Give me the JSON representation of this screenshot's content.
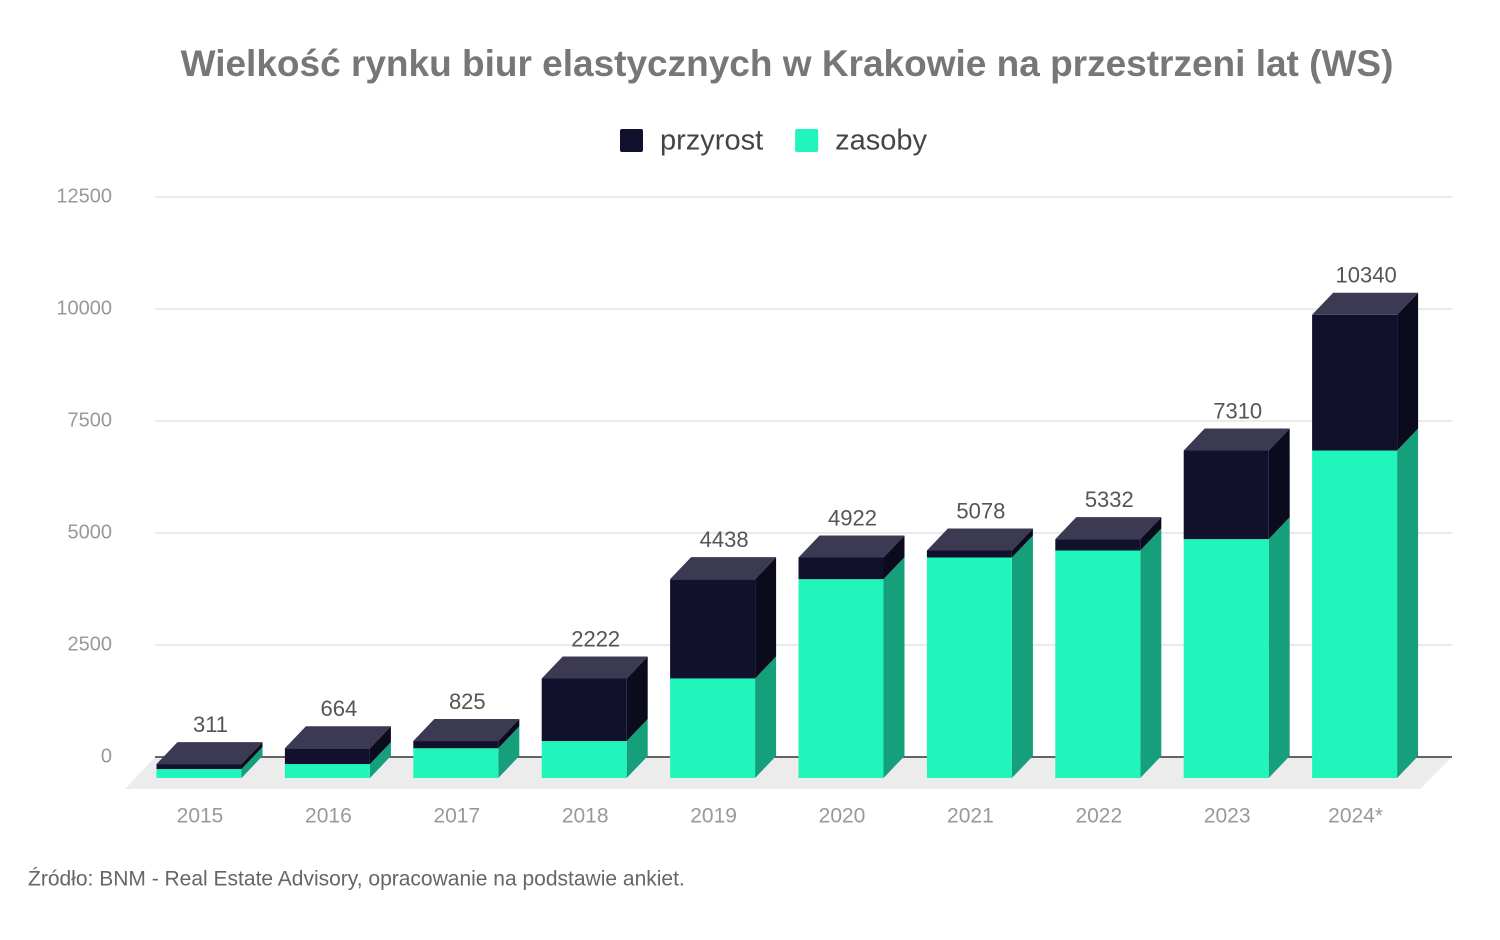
{
  "chart_data": {
    "type": "bar3d_stacked",
    "title": "Wielkość rynku biur elastycznych w Krakowie na przestrzeni lat (WS)",
    "categories": [
      "2015",
      "2016",
      "2017",
      "2018",
      "2019",
      "2020",
      "2021",
      "2022",
      "2023",
      "2024*"
    ],
    "series": [
      {
        "name": "przyrost",
        "color": "#11112e",
        "values": [
          111,
          353,
          161,
          1397,
          2216,
          484,
          156,
          254,
          1978,
          3030
        ]
      },
      {
        "name": "zasoby",
        "color": "#20f5bb",
        "values": [
          200,
          311,
          664,
          825,
          2222,
          4438,
          4922,
          5078,
          5332,
          7310
        ]
      }
    ],
    "totals": [
      311,
      664,
      825,
      2222,
      4438,
      4922,
      5078,
      5332,
      7310,
      10340
    ],
    "ylim": [
      0,
      12500
    ],
    "yticks": [
      0,
      2500,
      5000,
      7500,
      10000,
      12500
    ],
    "grid": true,
    "legend": "top",
    "source": "Źródło: BNM - Real Estate Advisory, opracowanie na podstawie ankiet."
  }
}
